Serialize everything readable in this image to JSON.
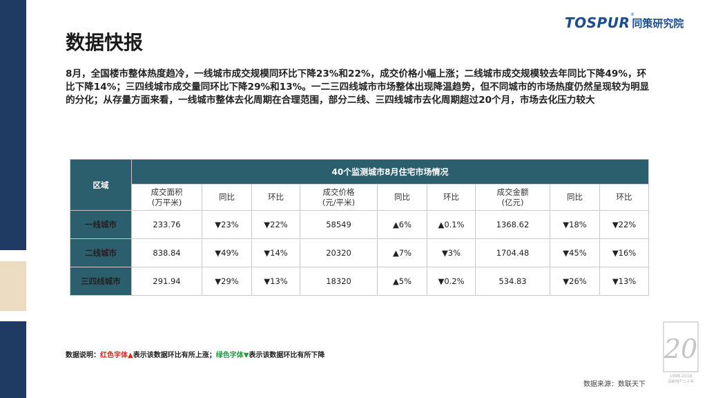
{
  "brand": {
    "name_en": "TOSPUR",
    "name_cn": "同策研究院",
    "reg_mark": "®"
  },
  "title": "数据快报",
  "summary": "8月，全国楼市整体热度趋冷，一线城市成交规模同环比下降23%和22%，成交价格小幅上涨；二线城市成交规模较去年同比下降49%，环比下降14%；三四线城市成交量同环比下降29%和13%。一二三四线城市市场整体出现降温趋势，但不同城市的市场热度仍然呈现较为明显的分化；从存量方面来看，一线城市整体去化周期在合理范围，部分二线、三四线城市去化周期超过20个月，市场去化压力较大",
  "table": {
    "region_header": "区域",
    "main_header": "40个监测城市8月住宅市场情况",
    "columns": [
      {
        "line1": "成交面积",
        "line2": "(万平米)"
      },
      {
        "line1": "同比",
        "line2": ""
      },
      {
        "line1": "环比",
        "line2": ""
      },
      {
        "line1": "成交价格",
        "line2": "(元/平米)"
      },
      {
        "line1": "同比",
        "line2": ""
      },
      {
        "line1": "环比",
        "line2": ""
      },
      {
        "line1": "成交金额",
        "line2": "(亿元)"
      },
      {
        "line1": "同比",
        "line2": ""
      },
      {
        "line1": "环比",
        "line2": ""
      }
    ],
    "rows": [
      {
        "region": "一线城市",
        "area": "233.76",
        "area_yoy": "▼23%",
        "area_mom": "▼22%",
        "price": "58549",
        "price_yoy": "▲6%",
        "price_mom": "▲0.1%",
        "amount": "1368.62",
        "amount_yoy": "▼18%",
        "amount_mom": "▼22%"
      },
      {
        "region": "二线城市",
        "area": "838.84",
        "area_yoy": "▼49%",
        "area_mom": "▼14%",
        "price": "20320",
        "price_yoy": "▲7%",
        "price_mom": "▼3%",
        "amount": "1704.48",
        "amount_yoy": "▼45%",
        "amount_mom": "▼16%"
      },
      {
        "region": "三四线城市",
        "area": "291.94",
        "area_yoy": "▼29%",
        "area_mom": "▼13%",
        "price": "18320",
        "price_yoy": "▲5%",
        "price_mom": "▼0.2%",
        "amount": "534.83",
        "amount_yoy": "▼26%",
        "amount_mom": "▼13%"
      }
    ]
  },
  "note": {
    "prefix": "数据说明：",
    "red_label": "红色字体▲",
    "red_desc": "表示该数据环比有所上涨；",
    "green_label": "绿色字体▼",
    "green_desc": "表示该数据环比有所下降"
  },
  "source": "数据来源：数联天下",
  "badge": {
    "number": "20",
    "years": "1998-2018",
    "caption": "深耕地产二十年"
  },
  "colors": {
    "navy": "#1f3b63",
    "teal": "#2c5f6e",
    "beige": "#ecdcc2",
    "up": "#e0201c",
    "down": "#1a9a3b",
    "brand": "#1a4d8f"
  }
}
